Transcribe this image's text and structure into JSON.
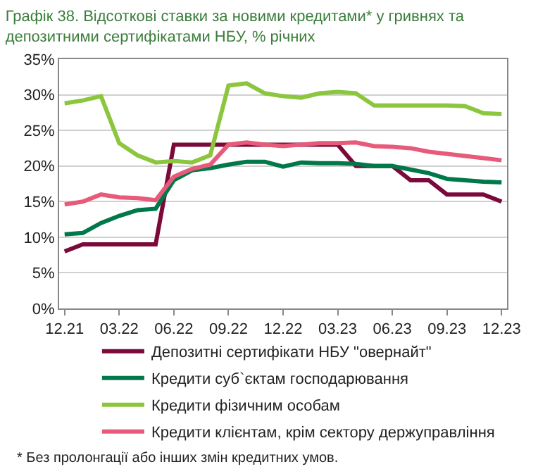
{
  "chart_data": {
    "type": "line",
    "title": "Графік 38. Відсоткові ставки за новими кредитами* у гривнях та\nдепозитними сертифікатами НБУ, % річних",
    "categories": [
      "12.21",
      null,
      null,
      "03.22",
      null,
      null,
      "06.22",
      null,
      null,
      "09.22",
      null,
      null,
      "12.22",
      null,
      null,
      "03.23",
      null,
      null,
      "06.23",
      null,
      null,
      "09.23",
      null,
      null,
      "12.23"
    ],
    "series": [
      {
        "name": "Депозитні сертифікати НБУ \"овернайт\"",
        "color": "#7b0a3a",
        "values": [
          8,
          9,
          9,
          9,
          9,
          9,
          23,
          23,
          23,
          23,
          23,
          23,
          23,
          23,
          23,
          23,
          20,
          20,
          20,
          18,
          18,
          16,
          16,
          16,
          15
        ]
      },
      {
        "name": "Кредити суб`єктам господарювання",
        "color": "#00784a",
        "values": [
          10.4,
          10.6,
          12,
          13,
          13.8,
          14,
          18,
          19.4,
          19.7,
          20.2,
          20.6,
          20.6,
          19.9,
          20.5,
          20.4,
          20.4,
          20.3,
          20,
          20,
          19.5,
          19,
          18.2,
          18,
          17.8,
          17.7
        ]
      },
      {
        "name": "Кредити фізичним особам",
        "color": "#8cc63f",
        "values": [
          28.8,
          29.2,
          29.8,
          23.2,
          21.5,
          20.5,
          20.7,
          20.5,
          21.5,
          31.3,
          31.6,
          30.2,
          29.8,
          29.6,
          30.2,
          30.4,
          30.2,
          28.5,
          28.5,
          28.5,
          28.5,
          28.5,
          28.4,
          27.4,
          27.3
        ]
      },
      {
        "name": "Кредити клієнтам, крім сектору держуправління",
        "color": "#e85a7a",
        "values": [
          14.6,
          15,
          16,
          15.6,
          15.5,
          15.2,
          18.5,
          19.6,
          20.2,
          23,
          23.3,
          23,
          22.8,
          23,
          23.2,
          23.2,
          23.3,
          22.8,
          22.7,
          22.5,
          22,
          21.7,
          21.4,
          21.1,
          20.8
        ]
      }
    ],
    "ylim": [
      0,
      35
    ],
    "yticks": [
      {
        "value": 0,
        "label": "0%"
      },
      {
        "value": 5,
        "label": "5%"
      },
      {
        "value": 10,
        "label": "10%"
      },
      {
        "value": 15,
        "label": "15%"
      },
      {
        "value": 20,
        "label": "20%"
      },
      {
        "value": 25,
        "label": "25%"
      },
      {
        "value": 30,
        "label": "30%"
      },
      {
        "value": 35,
        "label": "35%"
      }
    ],
    "grid": "y",
    "legend": "bottom",
    "marker": "none",
    "line_style": "solid",
    "annotations": [
      "* Без пролонгації або інших змін кредитних умов."
    ]
  }
}
